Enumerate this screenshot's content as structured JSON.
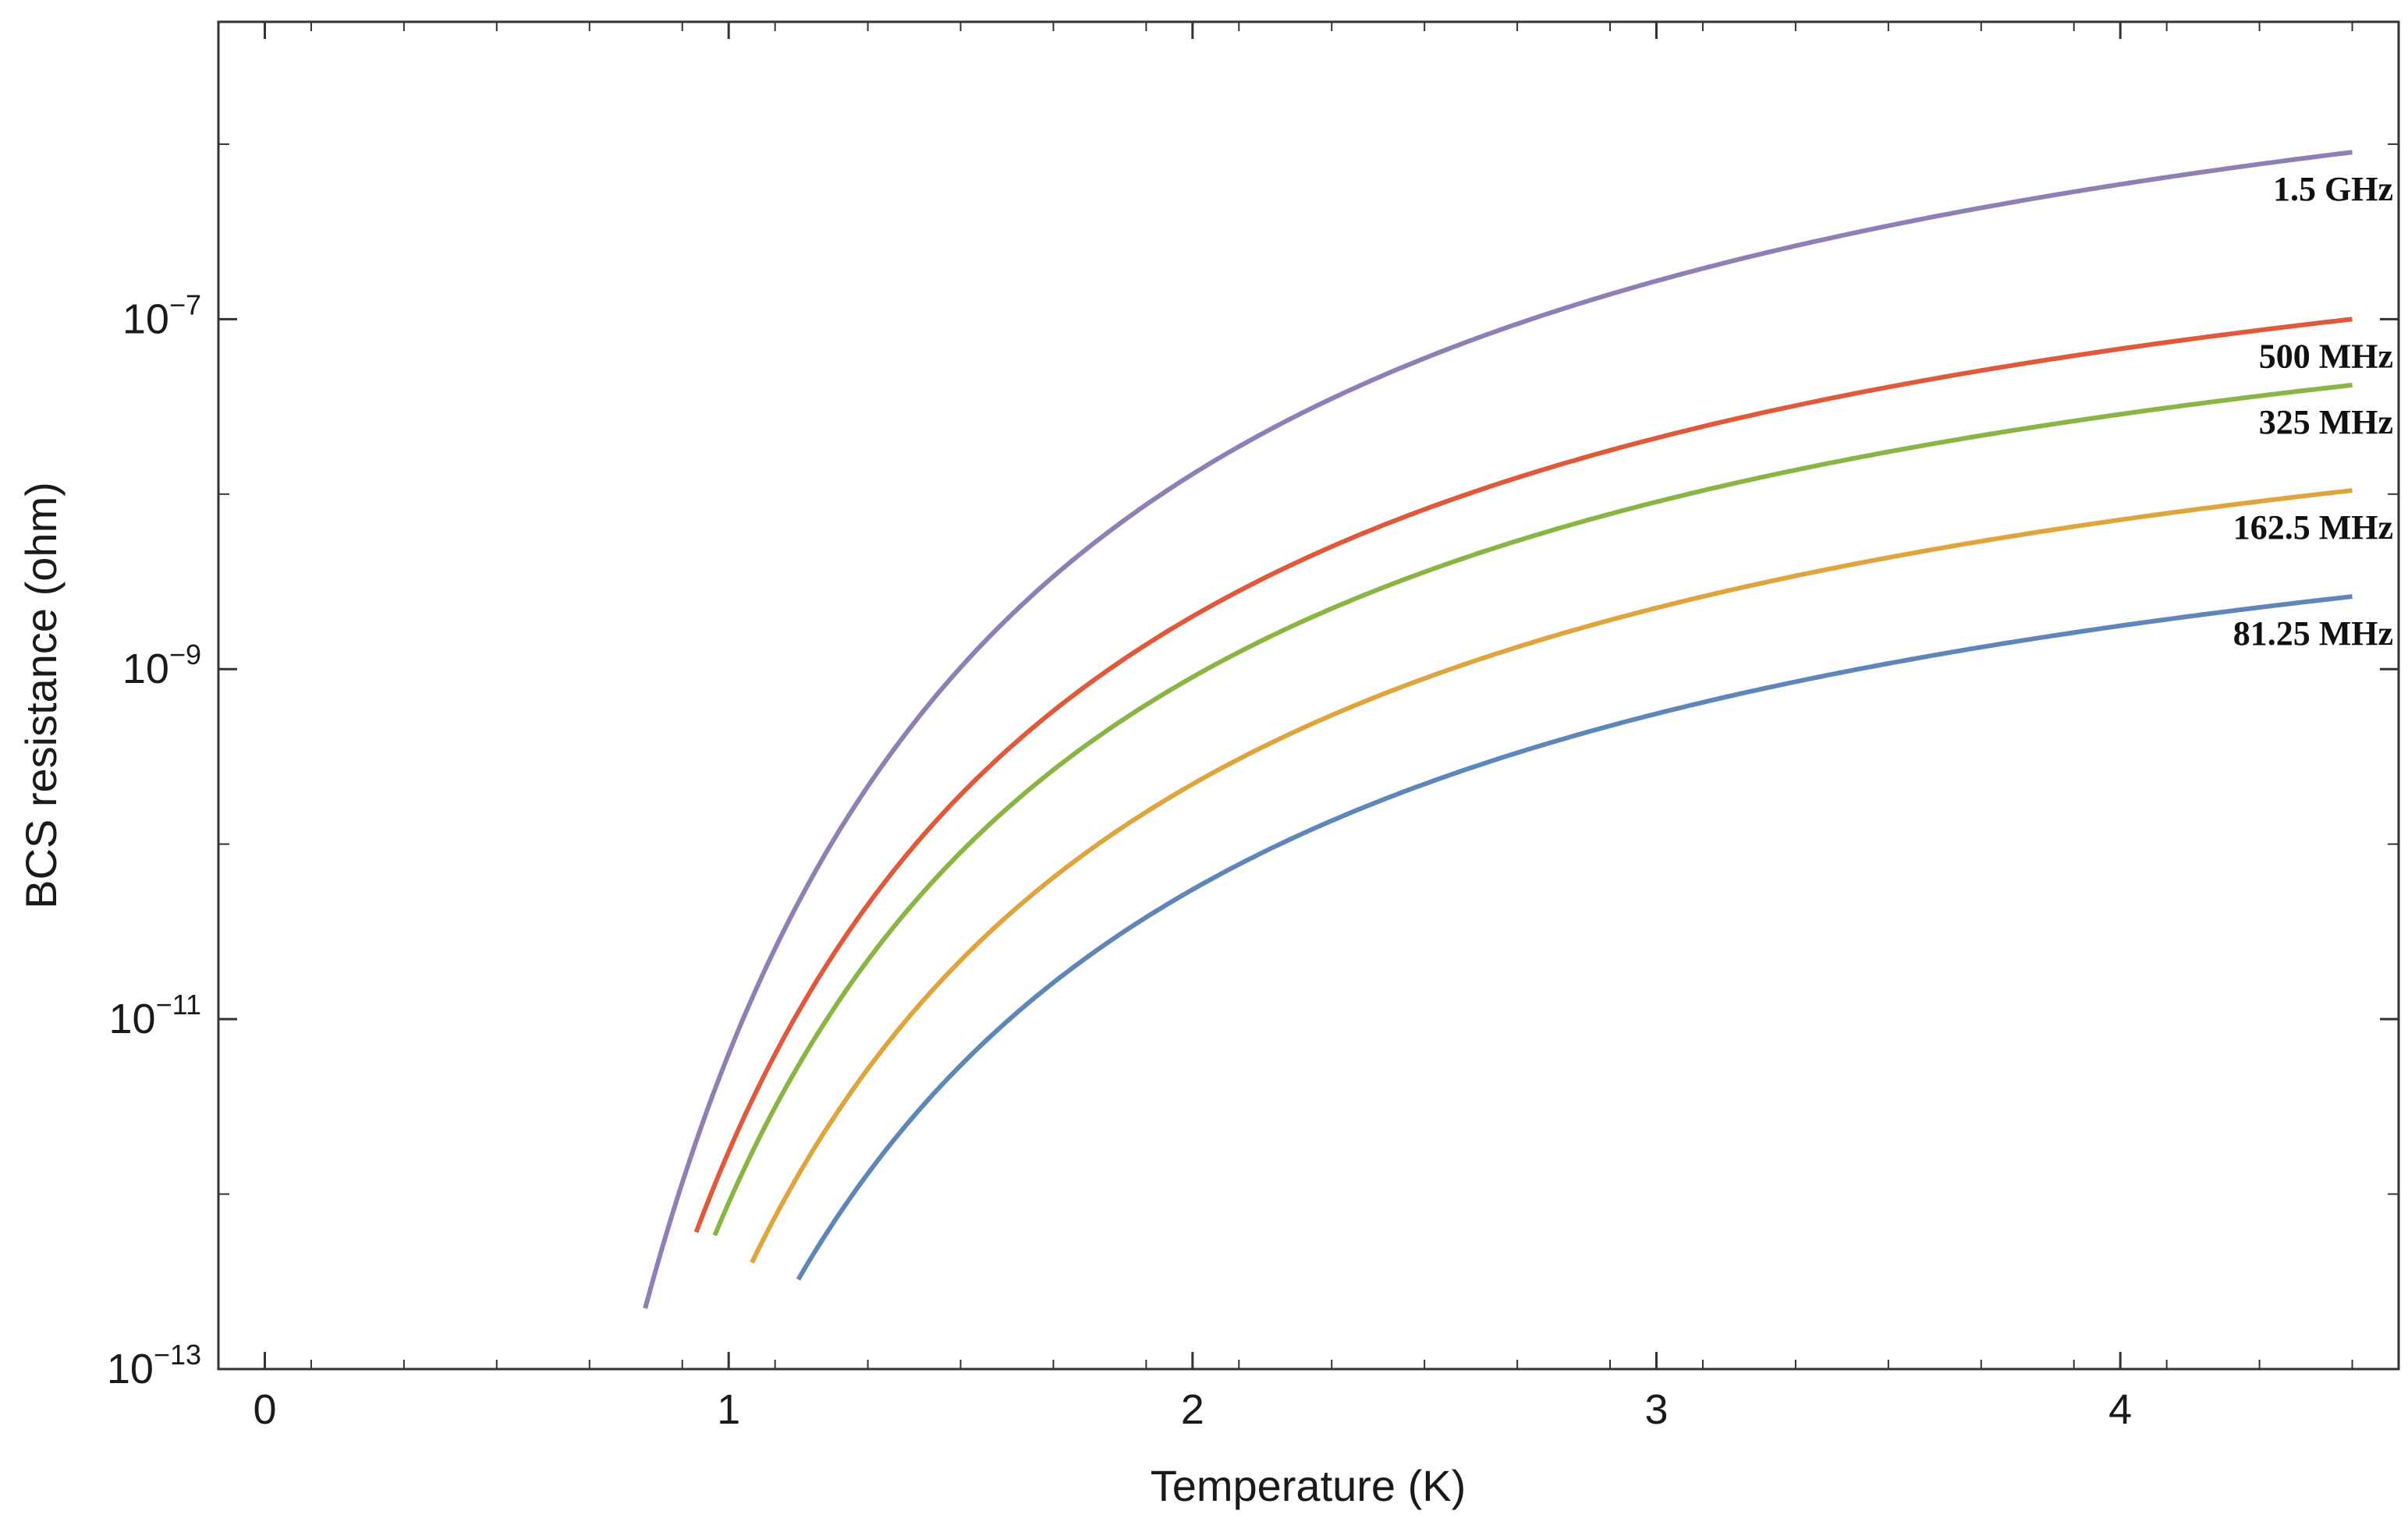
{
  "chart_data": {
    "type": "line",
    "xlabel": "Temperature (K)",
    "ylabel": "BCS resistance (ohm)",
    "yscale": "log",
    "xlim": [
      -0.1,
      4.6
    ],
    "ylim": [
      1e-13,
      5e-06
    ],
    "x_ticks": [
      {
        "value": 0,
        "label": "0"
      },
      {
        "value": 1,
        "label": "1"
      },
      {
        "value": 2,
        "label": "2"
      },
      {
        "value": 3,
        "label": "3"
      },
      {
        "value": 4,
        "label": "4"
      }
    ],
    "y_ticks": [
      {
        "value": 1e-13,
        "base": "10",
        "exp": "−13"
      },
      {
        "value": 1e-11,
        "base": "10",
        "exp": "−11"
      },
      {
        "value": 1e-09,
        "base": "10",
        "exp": "−9"
      },
      {
        "value": 1e-07,
        "base": "10",
        "exp": "−7"
      }
    ],
    "grid": false,
    "series": [
      {
        "name": "1.5 GHz",
        "color": "#8F7FB5",
        "x_start": 0.82,
        "x_end": 4.5,
        "y_at_x2": 1.3e-08,
        "y_at_xend": 9e-07
      },
      {
        "name": "500 MHz",
        "color": "#E0593A",
        "x_start": 0.93,
        "x_end": 4.5,
        "y_at_x2": 2e-09,
        "y_at_xend": 1e-07
      },
      {
        "name": "325 MHz",
        "color": "#8AB443",
        "x_start": 0.97,
        "x_end": 4.5,
        "y_at_x2": 9e-10,
        "y_at_xend": 4.2e-08
      },
      {
        "name": "162.5 MHz",
        "color": "#E0A43C",
        "x_start": 1.05,
        "x_end": 4.5,
        "y_at_x2": 2.2e-10,
        "y_at_xend": 1.05e-08
      },
      {
        "name": "81.25 MHz",
        "color": "#5E86B8",
        "x_start": 1.15,
        "x_end": 4.5,
        "y_at_x2": 5.5e-11,
        "y_at_xend": 2.6e-09
      }
    ]
  }
}
